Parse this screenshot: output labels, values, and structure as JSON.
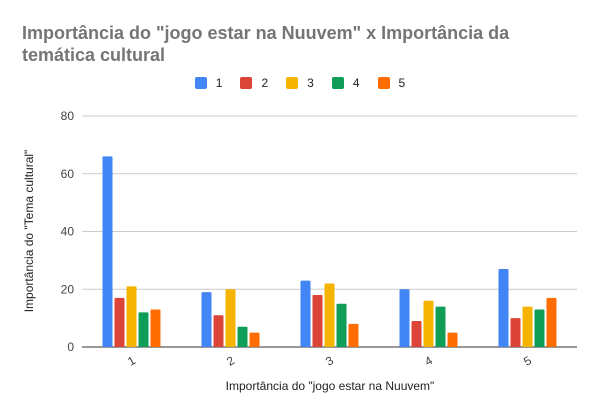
{
  "chart_data": {
    "type": "bar",
    "title": "Importância do \"jogo estar na Nuuvem\" x Importância da temática cultural",
    "xlabel": "Importância do \"jogo estar na Nuuvem\"",
    "ylabel": "Importância do \"Tema cultural\"",
    "categories": [
      "1",
      "2",
      "3",
      "4",
      "5"
    ],
    "ylim": [
      0,
      80
    ],
    "yticks": [
      "0",
      "20",
      "40",
      "60",
      "80"
    ],
    "grid": true,
    "legend_position": "top",
    "series": [
      {
        "name": "1",
        "color": "#4285f4",
        "values": [
          66,
          19,
          23,
          20,
          27
        ]
      },
      {
        "name": "2",
        "color": "#db4437",
        "values": [
          17,
          11,
          18,
          9,
          10
        ]
      },
      {
        "name": "3",
        "color": "#f4b400",
        "values": [
          21,
          20,
          22,
          16,
          14
        ]
      },
      {
        "name": "4",
        "color": "#0f9d58",
        "values": [
          12,
          7,
          15,
          14,
          13
        ]
      },
      {
        "name": "5",
        "color": "#ff6d00",
        "values": [
          13,
          5,
          8,
          5,
          17
        ]
      }
    ]
  }
}
